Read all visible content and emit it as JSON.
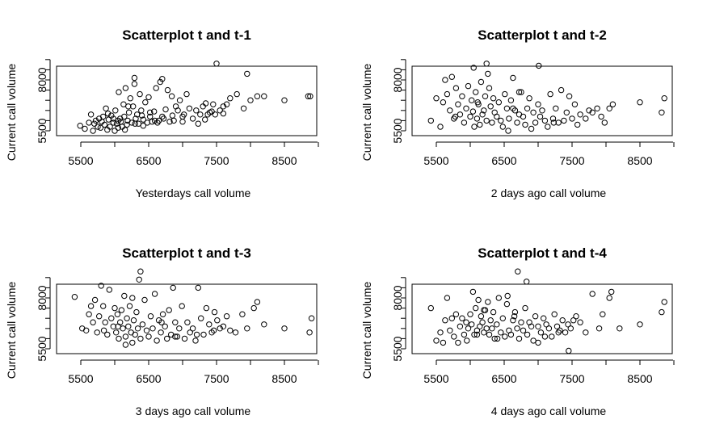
{
  "chart_data": [
    {
      "type": "scatter",
      "title": "Scatterplot t and t-1",
      "xlabel": "Yesterdays call volume",
      "ylabel": "Current call volume",
      "xlim": [
        5200,
        9000
      ],
      "ylim": [
        5300,
        9300
      ],
      "xticks": [
        5500,
        6500,
        7500,
        8500
      ],
      "xtick_labels": [
        "5500",
        "6500",
        "7500",
        "8500"
      ],
      "yticks": [
        5500,
        8000
      ],
      "ytick_labels": [
        "5500",
        "8000"
      ],
      "yticks_minor": [
        6000,
        6500,
        7000,
        7500,
        8500,
        9000
      ],
      "x": [
        5490,
        5560,
        5620,
        5650,
        5680,
        5700,
        5720,
        5750,
        5770,
        5790,
        5810,
        5830,
        5850,
        5870,
        5890,
        5910,
        5930,
        5950,
        5980,
        6000,
        6010,
        6030,
        6050,
        6060,
        6080,
        6090,
        6110,
        6130,
        6140,
        6160,
        6180,
        6190,
        6210,
        6230,
        6250,
        6270,
        6290,
        6310,
        6330,
        6350,
        6370,
        6390,
        6420,
        6450,
        6480,
        6500,
        6520,
        6550,
        6580,
        6610,
        6630,
        6650,
        6670,
        6700,
        6720,
        6750,
        6780,
        6810,
        6840,
        6870,
        6900,
        6930,
        6960,
        7000,
        7020,
        7060,
        7100,
        7150,
        7200,
        7230,
        7260,
        7300,
        7330,
        7370,
        7400,
        7430,
        7450,
        7480,
        7500,
        7550,
        7600,
        7650,
        7700,
        7800,
        7900,
        7950,
        8000,
        8100,
        8200,
        8500,
        8850,
        8880,
        6050,
        6150,
        6290,
        6420,
        6590,
        6700,
        7000,
        7340,
        5900,
        6200,
        6520,
        6850,
        7600,
        6300,
        5980,
        6400
      ],
      "y": [
        5750,
        5600,
        5900,
        6300,
        5500,
        5850,
        6000,
        5700,
        6100,
        5650,
        5950,
        6200,
        5800,
        6600,
        5550,
        6050,
        5700,
        6250,
        5900,
        5500,
        6500,
        5850,
        5650,
        7400,
        6100,
        5950,
        5700,
        6800,
        6200,
        7600,
        5800,
        6000,
        6400,
        7100,
        5900,
        6700,
        7800,
        6100,
        6300,
        5850,
        7300,
        6500,
        6050,
        6900,
        5900,
        7150,
        6200,
        5950,
        6450,
        7600,
        5900,
        6000,
        7900,
        6200,
        6100,
        6550,
        7500,
        5950,
        7200,
        6000,
        6700,
        6500,
        7000,
        5950,
        6300,
        7300,
        6600,
        6100,
        6500,
        5850,
        6300,
        6700,
        6050,
        6300,
        6400,
        6450,
        6800,
        6300,
        8800,
        6500,
        6700,
        6800,
        7100,
        7300,
        6600,
        8300,
        7000,
        7200,
        7200,
        7000,
        7200,
        7200,
        6000,
        5550,
        8100,
        5750,
        6000,
        8050,
        6200,
        6850,
        6350,
        6700,
        6400,
        6250,
        6350,
        5850,
        6100,
        6250
      ]
    },
    {
      "type": "scatter",
      "title": "Scatterplot t and t-2",
      "xlabel": "2 days ago call volume",
      "ylabel": "Current call volume",
      "xlim": [
        5200,
        9000
      ],
      "ylim": [
        5300,
        9300
      ],
      "xticks": [
        5500,
        6500,
        7500,
        8500
      ],
      "xtick_labels": [
        "5500",
        "6500",
        "7500",
        "8500"
      ],
      "yticks": [
        5500,
        8000
      ],
      "ytick_labels": [
        "5500",
        "8000"
      ],
      "yticks_minor": [
        6000,
        6500,
        7000,
        7500,
        8500,
        9000
      ],
      "x": [
        5420,
        5500,
        5560,
        5600,
        5630,
        5660,
        5700,
        5730,
        5760,
        5790,
        5820,
        5850,
        5880,
        5910,
        5940,
        5970,
        6000,
        6020,
        6040,
        6060,
        6080,
        6100,
        6120,
        6140,
        6160,
        6180,
        6200,
        6220,
        6240,
        6260,
        6280,
        6300,
        6320,
        6340,
        6360,
        6390,
        6420,
        6450,
        6480,
        6510,
        6540,
        6570,
        6600,
        6630,
        6660,
        6690,
        6720,
        6750,
        6780,
        6810,
        6840,
        6870,
        6900,
        6930,
        6960,
        7000,
        7030,
        7060,
        7100,
        7140,
        7180,
        7220,
        7260,
        7300,
        7340,
        7380,
        7420,
        7460,
        7500,
        7540,
        7580,
        7620,
        7700,
        7750,
        7800,
        7870,
        7930,
        7980,
        8050,
        8100,
        8500,
        8820,
        8860,
        6240,
        6560,
        7010,
        5780,
        6110,
        6630,
        7230,
        6050,
        6720
      ],
      "y": [
        6000,
        7100,
        5700,
        6900,
        8000,
        7300,
        6500,
        8150,
        6100,
        7600,
        6800,
        6300,
        7200,
        5900,
        6600,
        7700,
        6200,
        7000,
        6450,
        5700,
        7400,
        6100,
        6800,
        5800,
        7900,
        6300,
        6500,
        7200,
        6000,
        8300,
        7600,
        6700,
        5900,
        7100,
        6400,
        6200,
        6900,
        6000,
        5700,
        7300,
        6600,
        6100,
        7000,
        8100,
        6500,
        5900,
        6300,
        7400,
        6200,
        5800,
        6600,
        7100,
        5600,
        6400,
        5900,
        6800,
        6200,
        6500,
        6000,
        5700,
        7300,
        6100,
        6600,
        5900,
        7500,
        6000,
        6400,
        7200,
        6100,
        6800,
        5800,
        6300,
        6100,
        6500,
        6400,
        6600,
        6200,
        5900,
        6600,
        6800,
        6900,
        6400,
        7100,
        8800,
        5500,
        8700,
        6200,
        6900,
        6600,
        5900,
        8600,
        7400
      ]
    },
    {
      "type": "scatter",
      "title": "Scatterplot t and t-3",
      "xlabel": "3 days ago call volume",
      "ylabel": "Current call volume",
      "xlim": [
        5200,
        9000
      ],
      "ylim": [
        5300,
        9300
      ],
      "xticks": [
        5500,
        6500,
        7500,
        8500
      ],
      "xtick_labels": [
        "5500",
        "6500",
        "7500",
        "8500"
      ],
      "yticks": [
        5500,
        8000
      ],
      "ytick_labels": [
        "5500",
        "8000"
      ],
      "yticks_minor": [
        6000,
        6500,
        7000,
        7500,
        8500,
        9000
      ],
      "x": [
        5410,
        5520,
        5580,
        5620,
        5650,
        5680,
        5710,
        5740,
        5770,
        5800,
        5830,
        5860,
        5890,
        5920,
        5950,
        5980,
        6000,
        6020,
        6040,
        6060,
        6080,
        6100,
        6120,
        6140,
        6160,
        6180,
        6200,
        6220,
        6240,
        6260,
        6280,
        6300,
        6320,
        6340,
        6360,
        6380,
        6410,
        6440,
        6470,
        6500,
        6530,
        6560,
        6590,
        6620,
        6650,
        6680,
        6710,
        6740,
        6770,
        6800,
        6830,
        6860,
        6890,
        6920,
        6950,
        6990,
        7030,
        7070,
        7110,
        7150,
        7190,
        7230,
        7270,
        7310,
        7350,
        7390,
        7430,
        7470,
        7510,
        7550,
        7600,
        7650,
        7700,
        7780,
        7880,
        7950,
        8050,
        8100,
        8200,
        8500,
        8870,
        8900,
        6380,
        6050,
        5840,
        6690,
        7210,
        6260,
        7460,
        6890,
        6160
      ],
      "y": [
        8050,
        6500,
        6400,
        7200,
        7600,
        6800,
        7900,
        6300,
        7100,
        8600,
        7600,
        6800,
        6200,
        8400,
        7000,
        6600,
        7500,
        6300,
        7200,
        6000,
        6800,
        7400,
        6500,
        8100,
        6100,
        7000,
        6600,
        7600,
        6300,
        8000,
        6900,
        6200,
        7300,
        6500,
        8900,
        6000,
        6700,
        7900,
        6400,
        6100,
        7100,
        6500,
        8200,
        5900,
        6900,
        6300,
        7200,
        6600,
        6000,
        7400,
        6200,
        8500,
        6800,
        6100,
        6500,
        7600,
        6000,
        6800,
        6300,
        6500,
        5900,
        8500,
        7000,
        6200,
        7500,
        6700,
        6300,
        7300,
        6900,
        6500,
        6600,
        7100,
        6400,
        6300,
        7200,
        6500,
        7500,
        7800,
        6700,
        6500,
        6300,
        7000,
        9300,
        6600,
        6400,
        6800,
        6200,
        5800,
        6400,
        6100,
        5700
      ]
    },
    {
      "type": "scatter",
      "title": "Scatterplot t and t-4",
      "xlabel": "4 days ago call volume",
      "ylabel": "Current call volume",
      "xlim": [
        5200,
        9000
      ],
      "ylim": [
        5300,
        9300
      ],
      "xticks": [
        5500,
        6500,
        7500,
        8500
      ],
      "xtick_labels": [
        "5500",
        "6500",
        "7500",
        "8500"
      ],
      "yticks": [
        5500,
        8000
      ],
      "ytick_labels": [
        "5500",
        "8000"
      ],
      "yticks_minor": [
        6000,
        6500,
        7000,
        7500,
        8500,
        9000
      ],
      "x": [
        5420,
        5500,
        5560,
        5600,
        5630,
        5660,
        5700,
        5730,
        5760,
        5790,
        5820,
        5850,
        5880,
        5910,
        5940,
        5970,
        6000,
        6020,
        6040,
        6060,
        6080,
        6100,
        6120,
        6140,
        6160,
        6180,
        6200,
        6220,
        6240,
        6260,
        6280,
        6300,
        6320,
        6340,
        6360,
        6390,
        6420,
        6450,
        6480,
        6510,
        6540,
        6570,
        6600,
        6630,
        6660,
        6690,
        6720,
        6750,
        6780,
        6810,
        6840,
        6870,
        6900,
        6930,
        6960,
        7000,
        7040,
        7080,
        7120,
        7160,
        7200,
        7240,
        7280,
        7320,
        7360,
        7400,
        7440,
        7480,
        7520,
        7560,
        7620,
        7700,
        7800,
        7900,
        7950,
        8050,
        8080,
        8200,
        8500,
        8820,
        8860,
        6700,
        6830,
        7450,
        6100,
        6550,
        7000,
        6400,
        6200,
        7300,
        5950,
        6650,
        7100
      ],
      "y": [
        7500,
        5900,
        6300,
        5800,
        6900,
        8000,
        6400,
        7000,
        6100,
        7200,
        5800,
        6600,
        7000,
        6200,
        6800,
        6500,
        7200,
        6700,
        8300,
        6200,
        7500,
        6400,
        7900,
        6600,
        7100,
        6800,
        6300,
        7400,
        6500,
        7800,
        6200,
        6900,
        6500,
        7300,
        6000,
        6700,
        8000,
        6300,
        7000,
        6100,
        7700,
        6400,
        6200,
        6900,
        7300,
        6500,
        6000,
        6800,
        6400,
        7500,
        6200,
        6800,
        6600,
        5900,
        7100,
        6600,
        6300,
        7000,
        6700,
        6500,
        6100,
        7200,
        6600,
        6400,
        6900,
        6300,
        6700,
        6500,
        6900,
        7100,
        6800,
        6300,
        8200,
        6500,
        7200,
        8000,
        8300,
        6500,
        6700,
        7300,
        7800,
        9300,
        8800,
        5400,
        6200,
        8100,
        5800,
        6000,
        7400,
        6300,
        5900,
        7100,
        6100
      ]
    }
  ]
}
